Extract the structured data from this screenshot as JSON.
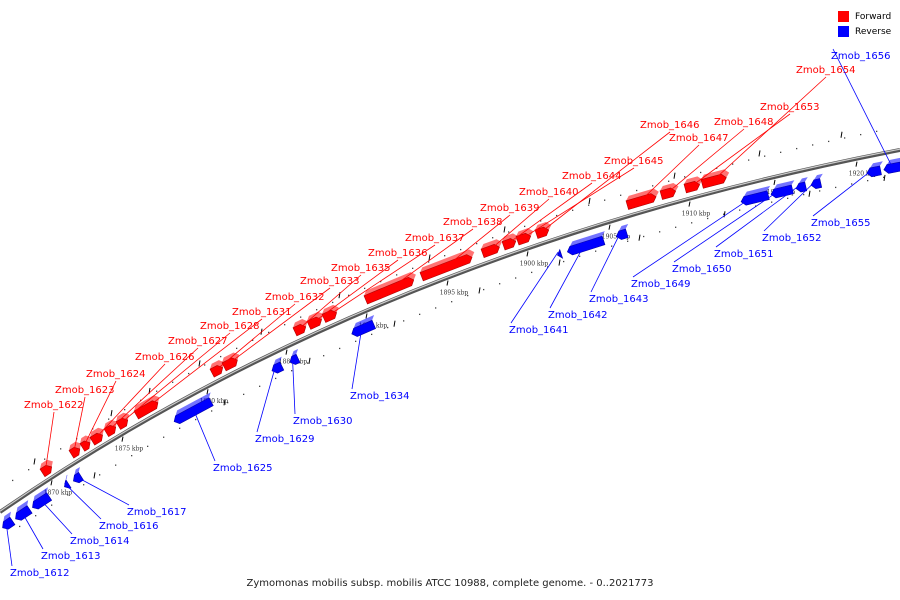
{
  "legend": {
    "forward_label": "Forward",
    "reverse_label": "Reverse",
    "forward_color": "#ff0000",
    "reverse_color": "#0000ff"
  },
  "caption": "Zymomonas mobilis subsp. mobilis ATCC 10988, complete genome. - 0..2021773",
  "tick_labels": [
    "1870 kbp",
    "1875 kbp",
    "1880 kbp",
    "1885 kbp",
    "1890 kbp",
    "1895 kbp",
    "1900 kbp",
    "1905 kbp",
    "1910 kbp",
    "1915 kbp",
    "1920 kbp"
  ],
  "genes": [
    {
      "name": "Zmob_1612",
      "strand": "reverse"
    },
    {
      "name": "Zmob_1613",
      "strand": "reverse"
    },
    {
      "name": "Zmob_1614",
      "strand": "reverse"
    },
    {
      "name": "Zmob_1616",
      "strand": "reverse"
    },
    {
      "name": "Zmob_1617",
      "strand": "reverse"
    },
    {
      "name": "Zmob_1622",
      "strand": "forward"
    },
    {
      "name": "Zmob_1623",
      "strand": "forward"
    },
    {
      "name": "Zmob_1624",
      "strand": "forward"
    },
    {
      "name": "Zmob_1625",
      "strand": "reverse"
    },
    {
      "name": "Zmob_1626",
      "strand": "forward"
    },
    {
      "name": "Zmob_1627",
      "strand": "forward"
    },
    {
      "name": "Zmob_1628",
      "strand": "forward"
    },
    {
      "name": "Zmob_1629",
      "strand": "reverse"
    },
    {
      "name": "Zmob_1630",
      "strand": "reverse"
    },
    {
      "name": "Zmob_1631",
      "strand": "forward"
    },
    {
      "name": "Zmob_1632",
      "strand": "forward"
    },
    {
      "name": "Zmob_1633",
      "strand": "forward"
    },
    {
      "name": "Zmob_1634",
      "strand": "reverse"
    },
    {
      "name": "Zmob_1635",
      "strand": "forward"
    },
    {
      "name": "Zmob_1636",
      "strand": "forward"
    },
    {
      "name": "Zmob_1637",
      "strand": "forward"
    },
    {
      "name": "Zmob_1638",
      "strand": "forward"
    },
    {
      "name": "Zmob_1639",
      "strand": "forward"
    },
    {
      "name": "Zmob_1640",
      "strand": "forward"
    },
    {
      "name": "Zmob_1641",
      "strand": "reverse"
    },
    {
      "name": "Zmob_1642",
      "strand": "reverse"
    },
    {
      "name": "Zmob_1643",
      "strand": "reverse"
    },
    {
      "name": "Zmob_1644",
      "strand": "forward"
    },
    {
      "name": "Zmob_1645",
      "strand": "forward"
    },
    {
      "name": "Zmob_1646",
      "strand": "forward"
    },
    {
      "name": "Zmob_1647",
      "strand": "forward"
    },
    {
      "name": "Zmob_1648",
      "strand": "forward"
    },
    {
      "name": "Zmob_1649",
      "strand": "reverse"
    },
    {
      "name": "Zmob_1650",
      "strand": "reverse"
    },
    {
      "name": "Zmob_1651",
      "strand": "reverse"
    },
    {
      "name": "Zmob_1652",
      "strand": "reverse"
    },
    {
      "name": "Zmob_1653",
      "strand": "forward"
    },
    {
      "name": "Zmob_1654",
      "strand": "forward"
    },
    {
      "name": "Zmob_1655",
      "strand": "reverse"
    },
    {
      "name": "Zmob_1656",
      "strand": "reverse"
    }
  ]
}
